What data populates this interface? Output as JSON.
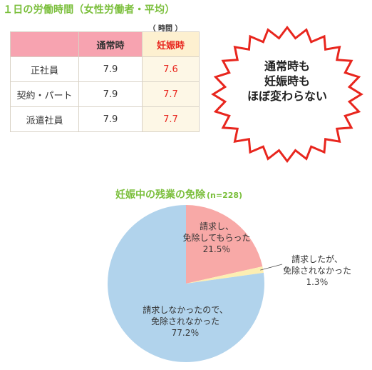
{
  "table": {
    "title": "１日の労働時間（女性労働者・平均）",
    "unit": "（ 時間 ）",
    "headers": [
      "",
      "通常時",
      "妊娠時"
    ],
    "rows": [
      {
        "label": "正社員",
        "normal": "7.9",
        "pregnant": "7.6"
      },
      {
        "label": "契約・パート",
        "normal": "7.9",
        "pregnant": "7.7"
      },
      {
        "label": "派遣社員",
        "normal": "7.9",
        "pregnant": "7.7"
      }
    ]
  },
  "callout": {
    "lines": [
      "通常時も",
      "妊娠時も",
      "ほぼ変わらない"
    ]
  },
  "chart_data": [
    {
      "type": "table",
      "title": "１日の労働時間（女性労働者・平均）",
      "unit": "時間",
      "columns": [
        "通常時",
        "妊娠時"
      ],
      "rows": [
        "正社員",
        "契約・パート",
        "派遣社員"
      ],
      "values": [
        [
          7.9,
          7.6
        ],
        [
          7.9,
          7.7
        ],
        [
          7.9,
          7.7
        ]
      ]
    },
    {
      "type": "pie",
      "title": "妊娠中の残業の免除",
      "subtitle": "(n=228)",
      "slices": [
        {
          "label_lines": [
            "請求し、",
            "免除してもらった"
          ],
          "pct_text": "21.5％",
          "value": 21.5,
          "color": "#f8a9a7"
        },
        {
          "label_lines": [
            "請求したが、",
            "免除されなかった"
          ],
          "pct_text": "1.3％",
          "value": 1.3,
          "color": "#fdeeb2"
        },
        {
          "label_lines": [
            "請求しなかったので、",
            "免除されなかった"
          ],
          "pct_text": "77.2％",
          "value": 77.2,
          "color": "#b1d3ec"
        }
      ],
      "start_angle": "12 o'clock",
      "direction": "clockwise"
    }
  ],
  "colors": {
    "title_green": "#7bbf3c",
    "accent_red": "#e8261e",
    "header_pink": "#f7a3b0",
    "header_cream": "#fdf0d0",
    "burst_outline": "#e8261e"
  }
}
